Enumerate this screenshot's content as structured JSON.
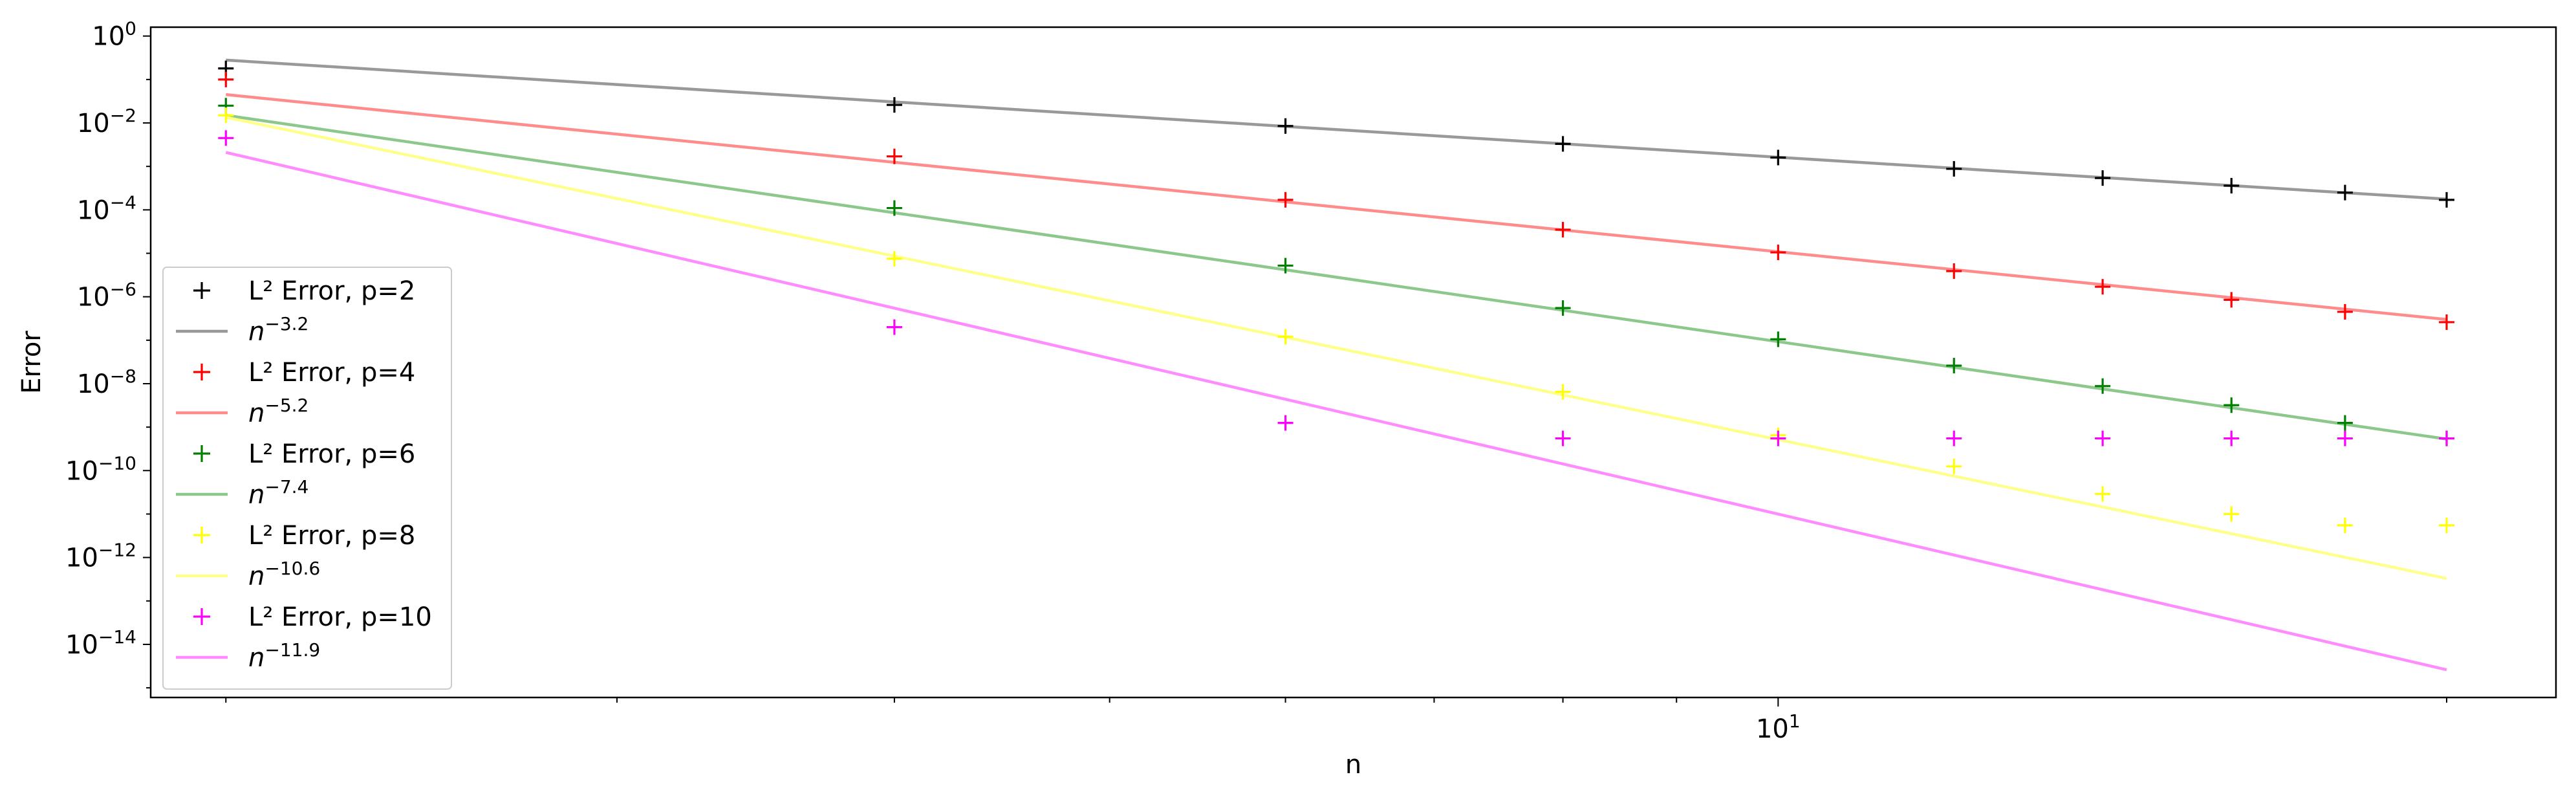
{
  "chart_data": {
    "type": "line",
    "xlabel": "n",
    "ylabel": "Error",
    "xscale": "log",
    "yscale": "log",
    "xlim": [
      1.85,
      22.4
    ],
    "ylim": [
      6e-16,
      1.6
    ],
    "x_tick_labels": [
      {
        "value": 10,
        "base": "10",
        "exp": "1"
      }
    ],
    "x_minor_ticks": [
      2,
      3,
      4,
      5,
      6,
      7,
      8,
      9,
      20
    ],
    "y_tick_labels": [
      {
        "value": 1,
        "base": "10",
        "exp": "0"
      },
      {
        "value": 0.01,
        "base": "10",
        "exp": "−2"
      },
      {
        "value": 0.0001,
        "base": "10",
        "exp": "−4"
      },
      {
        "value": 1e-06,
        "base": "10",
        "exp": "−6"
      },
      {
        "value": 1e-08,
        "base": "10",
        "exp": "−8"
      },
      {
        "value": 1e-10,
        "base": "10",
        "exp": "−10"
      },
      {
        "value": 1e-12,
        "base": "10",
        "exp": "−12"
      },
      {
        "value": 1e-14,
        "base": "10",
        "exp": "−14"
      }
    ],
    "grid": false,
    "legend_position": "lower-left",
    "x": [
      2,
      4,
      6,
      8,
      10,
      12,
      14,
      16,
      18,
      20
    ],
    "series": [
      {
        "name": "L² Error, p=2",
        "kind": "marker",
        "marker": "+",
        "color": "#000000",
        "values": [
          0.18,
          0.026,
          0.0085,
          0.0033,
          0.0016,
          0.00088,
          0.00054,
          0.00036,
          0.00025,
          0.00017
        ]
      },
      {
        "name_base": "n",
        "name_exp": "−3.2",
        "kind": "line",
        "color": "#999999",
        "x_range": [
          2,
          20
        ],
        "y_range": [
          0.28,
          0.000177
        ]
      },
      {
        "name": "L² Error, p=4",
        "kind": "marker",
        "marker": "+",
        "color": "#ff0000",
        "values": [
          0.1,
          0.0017,
          0.00017,
          3.5e-05,
          1.05e-05,
          3.9e-06,
          1.7e-06,
          8.5e-07,
          4.5e-07,
          2.6e-07
        ]
      },
      {
        "name_base": "n",
        "name_exp": "−5.2",
        "kind": "line",
        "color": "#ff8c8c",
        "x_range": [
          2,
          20
        ],
        "y_range": [
          0.045,
          3e-07
        ]
      },
      {
        "name": "L² Error, p=6",
        "kind": "marker",
        "marker": "+",
        "color": "#008000",
        "values": [
          0.025,
          0.00011,
          5.2e-06,
          5.5e-07,
          1.05e-07,
          2.6e-08,
          8.8e-09,
          3.2e-09,
          1.25e-09,
          5.5e-10
        ]
      },
      {
        "name_base": "n",
        "name_exp": "−7.4",
        "kind": "line",
        "color": "#8cc88c",
        "x_range": [
          2,
          20
        ],
        "y_range": [
          0.015,
          5.3e-10
        ]
      },
      {
        "name": "L² Error, p=8",
        "kind": "marker",
        "marker": "+",
        "color": "#ffff00",
        "values": [
          0.015,
          7.5e-06,
          1.2e-07,
          6.5e-09,
          6.5e-10,
          1.25e-10,
          2.9e-11,
          1e-11,
          5.5e-12,
          5.5e-12
        ]
      },
      {
        "name_base": "n",
        "name_exp": "−10.6",
        "kind": "line",
        "color": "#ffff8c",
        "x_range": [
          2,
          20
        ],
        "y_range": [
          0.0135,
          3.3e-13
        ]
      },
      {
        "name": "L² Error, p=10",
        "kind": "marker",
        "marker": "+",
        "color": "#ff00ff",
        "values": [
          0.0045,
          2e-07,
          1.25e-09,
          5.5e-10,
          5.5e-10,
          5.5e-10,
          5.5e-10,
          5.5e-10,
          5.5e-10,
          5.5e-10
        ]
      },
      {
        "name_base": "n",
        "name_exp": "−11.9",
        "kind": "line",
        "color": "#ff8cff",
        "x_range": [
          2,
          20
        ],
        "y_range": [
          0.0021,
          2.6e-15
        ]
      }
    ]
  }
}
